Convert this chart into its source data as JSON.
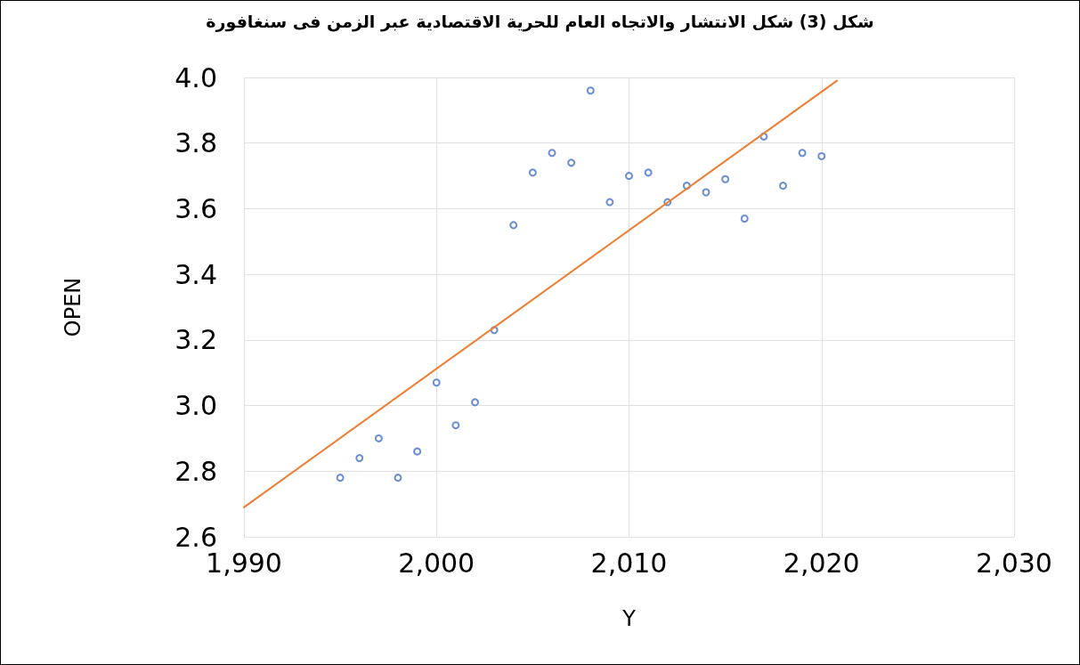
{
  "chart_data": {
    "type": "scatter",
    "title": "شكل (3) شكل الانتشار والاتجاه العام للحرية الاقتصادية عبر الزمن فى سنغافورة",
    "xlabel": "Y",
    "ylabel": "OPEN",
    "series": [
      {
        "type": "scatter",
        "color": "#4472c4",
        "marker": "circle",
        "x": [
          1995,
          1996,
          1997,
          1998,
          1999,
          2000,
          2001,
          2002,
          2003,
          2004,
          2005,
          2006,
          2007,
          2008,
          2009,
          2010,
          2011,
          2012,
          2013,
          2014,
          2015,
          2016,
          2017,
          2018,
          2019,
          2020
        ],
        "values": [
          2.78,
          2.84,
          2.9,
          2.78,
          2.86,
          3.07,
          2.94,
          3.01,
          3.23,
          3.55,
          3.71,
          3.77,
          3.74,
          3.96,
          3.62,
          3.7,
          3.71,
          3.62,
          3.67,
          3.65,
          3.69,
          3.57,
          3.82,
          3.67,
          3.77,
          3.76
        ]
      },
      {
        "type": "line",
        "color": "#ed7d31",
        "marker": "none",
        "line_style": "solid",
        "x": [
          1990,
          2020.8
        ],
        "values": [
          2.69,
          3.99
        ]
      }
    ],
    "xlim": [
      1990,
      2030
    ],
    "xticks": [
      {
        "value": 1990,
        "label": "1,990"
      },
      {
        "value": 2000,
        "label": "2,000"
      },
      {
        "value": 2010,
        "label": "2,010"
      },
      {
        "value": 2020,
        "label": "2,020"
      },
      {
        "value": 2030,
        "label": "2,030"
      }
    ],
    "ylim": [
      2.6,
      4.0
    ],
    "yticks": [
      2.6,
      2.8,
      {
        "value": 3.0,
        "label": "3.0"
      },
      3.2,
      3.4,
      3.6,
      3.8,
      {
        "value": 4.0,
        "label": "4.0"
      }
    ],
    "grid": true
  }
}
